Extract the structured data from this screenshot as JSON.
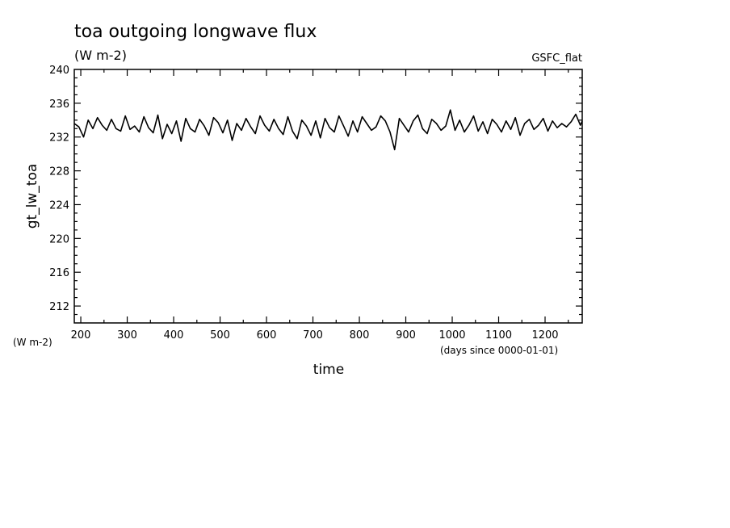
{
  "chart_data": {
    "type": "line",
    "title": "toa outgoing longwave flux",
    "title_units": "(W m-2)",
    "tag": "GSFC_flat",
    "ylabel": "gt_lw_toa",
    "ylabel_units": "(W m-2)",
    "xlabel": "time",
    "xlabel_units": "(days since 0000-01-01)",
    "xlim": [
      186,
      1280
    ],
    "ylim": [
      210,
      240
    ],
    "xticks": [
      200,
      300,
      400,
      500,
      600,
      700,
      800,
      900,
      1000,
      1100,
      1200
    ],
    "xtick_labels": [
      "200",
      "300",
      "400",
      "500",
      "600",
      "700",
      "800",
      "900",
      "1000",
      "1100",
      "1200"
    ],
    "yticks": [
      212,
      216,
      220,
      224,
      228,
      232,
      236,
      240
    ],
    "ytick_labels": [
      "212",
      "216",
      "220",
      "224",
      "228",
      "232",
      "236",
      "240"
    ],
    "grid": false,
    "line_color": "#000000",
    "series": [
      {
        "x": [
          186,
          196,
          206,
          216,
          226,
          236,
          246,
          256,
          266,
          276,
          286,
          296,
          306,
          316,
          326,
          336,
          346,
          356,
          366,
          376,
          386,
          396,
          406,
          416,
          426,
          436,
          446,
          456,
          466,
          476,
          486,
          496,
          506,
          516,
          526,
          536,
          546,
          556,
          566,
          576,
          586,
          596,
          606,
          616,
          626,
          636,
          646,
          656,
          666,
          676,
          686,
          696,
          706,
          716,
          726,
          736,
          746,
          756,
          766,
          776,
          786,
          796,
          806,
          816,
          826,
          836,
          846,
          856,
          866,
          876,
          886,
          896,
          906,
          916,
          926,
          936,
          946,
          956,
          966,
          976,
          986,
          996,
          1006,
          1016,
          1026,
          1036,
          1046,
          1056,
          1066,
          1076,
          1086,
          1096,
          1106,
          1116,
          1126,
          1136,
          1146,
          1156,
          1166,
          1176,
          1186,
          1196,
          1206,
          1216,
          1226,
          1236,
          1246,
          1256,
          1266,
          1276,
          1280
        ],
        "y": [
          233.6,
          233.2,
          232.0,
          234.0,
          233.0,
          234.3,
          233.4,
          232.8,
          234.1,
          233.0,
          232.7,
          234.5,
          232.9,
          233.3,
          232.6,
          234.4,
          233.1,
          232.5,
          234.6,
          231.8,
          233.5,
          232.4,
          233.9,
          231.5,
          234.2,
          233.0,
          232.6,
          234.1,
          233.3,
          232.2,
          234.3,
          233.7,
          232.5,
          234.0,
          231.6,
          233.6,
          232.8,
          234.2,
          233.2,
          232.4,
          234.5,
          233.4,
          232.7,
          234.1,
          233.0,
          232.3,
          234.4,
          232.7,
          231.8,
          234.0,
          233.3,
          232.2,
          233.9,
          231.9,
          234.2,
          233.1,
          232.6,
          234.5,
          233.3,
          232.1,
          233.9,
          232.6,
          234.4,
          233.6,
          232.8,
          233.2,
          234.5,
          233.9,
          232.6,
          230.5,
          234.2,
          233.4,
          232.6,
          233.9,
          234.6,
          233.0,
          232.4,
          234.1,
          233.6,
          232.8,
          233.3,
          235.2,
          232.8,
          234.0,
          232.6,
          233.4,
          234.5,
          232.7,
          233.8,
          232.4,
          234.1,
          233.5,
          232.6,
          233.9,
          232.9,
          234.3,
          232.2,
          233.6,
          234.1,
          232.9,
          233.4,
          234.2,
          232.7,
          233.9,
          233.1,
          233.6,
          233.2,
          233.8,
          234.7,
          233.4,
          233.9
        ]
      }
    ]
  }
}
